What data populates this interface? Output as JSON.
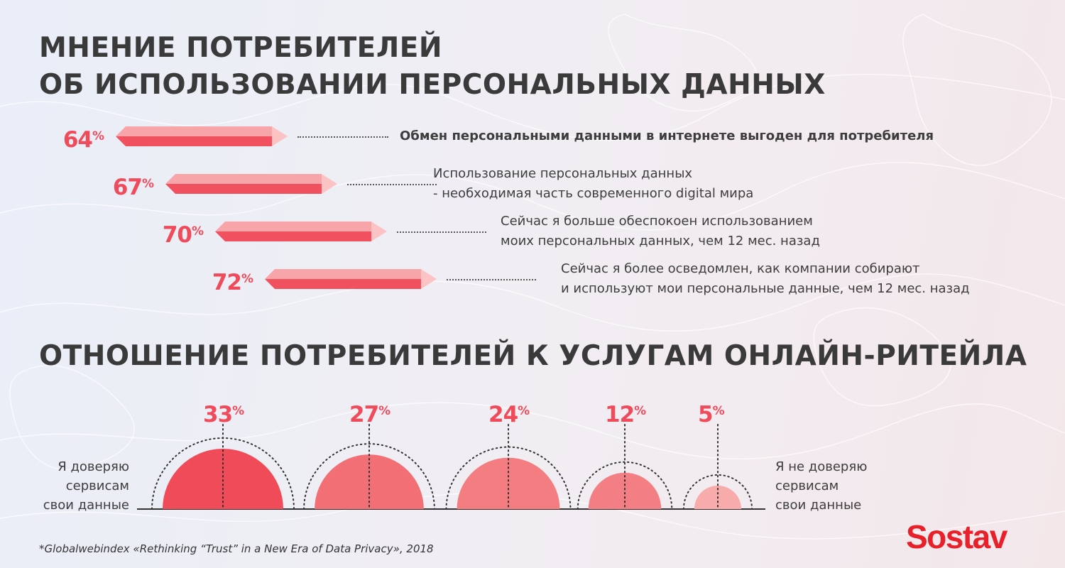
{
  "title_top": [
    "МНЕНИЕ ПОТРЕБИТЕЛЕЙ",
    "ОБ ИСПОЛЬЗОВАНИИ ПЕРСОНАЛЬНЫХ ДАННЫХ"
  ],
  "title_bottom": "ОТНОШЕНИЕ ПОТРЕБИТЕЛЕЙ К УСЛУГАМ ОНЛАЙН-РИТЕЙЛА",
  "colors": {
    "accent": "#ef4b5a",
    "bar_front": "#f1505f",
    "bar_top": "#f7a5a8",
    "bar_end": "#fbc3c3",
    "logo": "#e8202a"
  },
  "chart_data": [
    {
      "type": "bar",
      "orientation": "horizontal",
      "value_suffix": "%",
      "categories": [
        "Обмен персональными данными в интернете выгоден для потребителя",
        "Использование персональных данных - необходимая часть современного digital мира",
        "Сейчас я больше обеспокоен использованием моих персональных данных, чем 12 мес. назад",
        "Сейчас я более осведомлен, как компании собирают и используют мои персональные данные, чем 12 мес. назад"
      ],
      "values": [
        64,
        67,
        70,
        72
      ],
      "labels": [
        [
          "Обмен персональными данными в интернете выгоден для потребителя"
        ],
        [
          "Использование персональных данных",
          "- необходимая часть современного digital мира"
        ],
        [
          "Сейчас я больше обеспокоен использованием",
          "моих персональных данных, чем 12 мес. назад"
        ],
        [
          "Сейчас я более осведомлен, как компании собирают",
          "и используют мои персональные данные, чем 12 мес. назад"
        ]
      ]
    },
    {
      "type": "bar",
      "form": "semicircles",
      "value_suffix": "%",
      "values": [
        33,
        27,
        24,
        12,
        5
      ],
      "colors": [
        "#f04b58",
        "#f26f76",
        "#f47d82",
        "#f37f84",
        "#f8abab"
      ],
      "left_label": [
        "Я доверяю",
        "сервисам",
        "свои данные"
      ],
      "right_label": [
        "Я не доверяю",
        "сервисам",
        "свои данные"
      ]
    }
  ],
  "footnote": "*Globalwebindex «Rethinking “Trust” in a New Era of Data Privacy», 2018",
  "logo": "Sostav"
}
